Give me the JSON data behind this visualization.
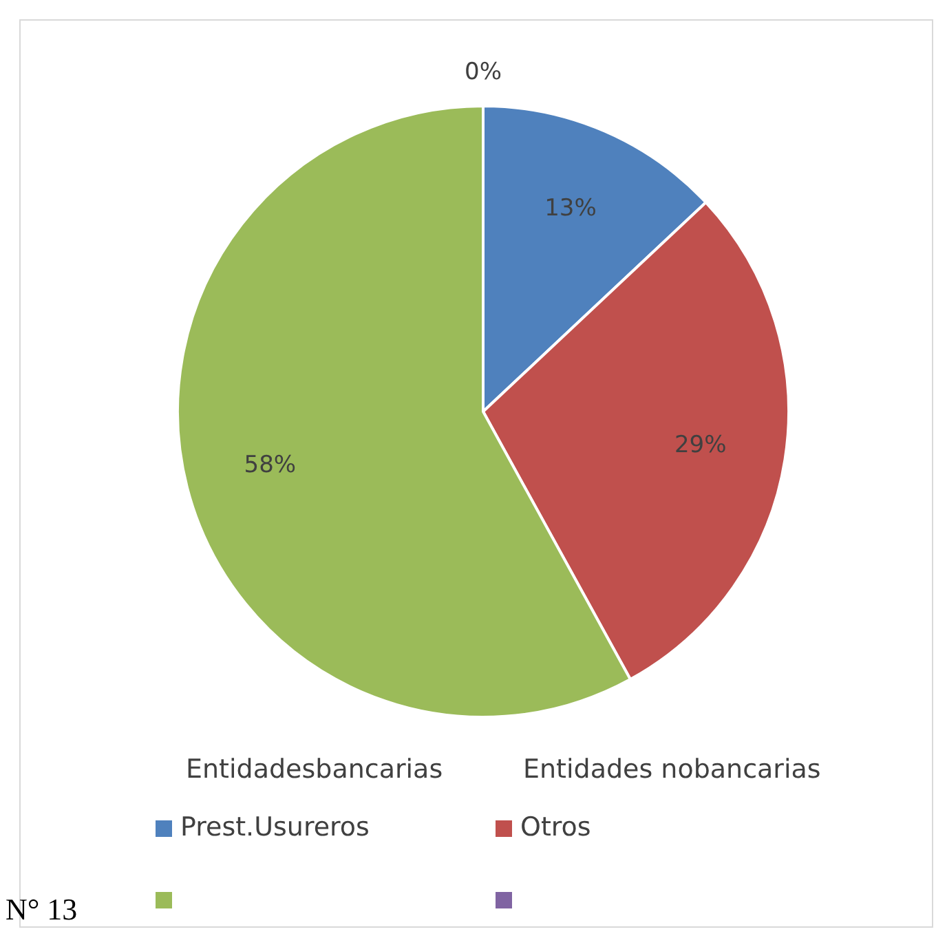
{
  "chart_data": {
    "type": "pie",
    "categories": [
      "Prest.Usureros",
      "Otros",
      null,
      null
    ],
    "values": [
      13,
      29,
      58,
      0
    ],
    "colors": [
      "#4f81bd",
      "#c0504d",
      "#9bbb59",
      "#8064a2"
    ],
    "value_labels": [
      "13%",
      "29%",
      "58%",
      "0%"
    ],
    "legend": "bottom",
    "annotations": [
      "Entidadesbancarias",
      "Entidades nobancarias",
      "N° 13"
    ]
  }
}
